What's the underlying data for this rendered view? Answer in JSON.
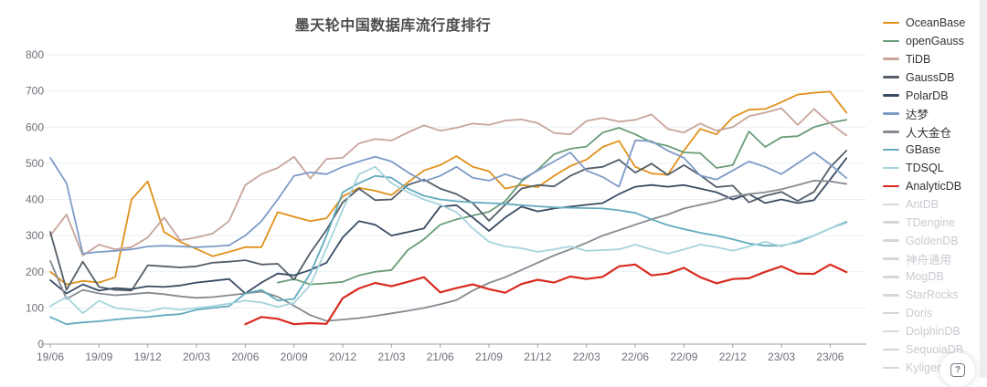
{
  "title": "墨天轮中国数据库流行度排行",
  "help_button": {
    "glyph": "?"
  },
  "colors": {
    "axis_line": "#9aa0a6",
    "grid_line": "#e9eff5",
    "axis_label": "#6e7079",
    "disabled_swatch": "#d4d7db"
  },
  "chart_data": {
    "type": "line",
    "title": "墨天轮中国数据库流行度排行",
    "xlabel": "",
    "ylabel": "",
    "ylim": [
      0,
      800
    ],
    "grid": true,
    "legend_position": "right",
    "y_ticks": [
      0,
      100,
      200,
      300,
      400,
      500,
      600,
      700,
      800
    ],
    "x": [
      "19/06",
      "19/07",
      "19/08",
      "19/09",
      "19/10",
      "19/11",
      "19/12",
      "20/01",
      "20/02",
      "20/03",
      "20/04",
      "20/05",
      "20/06",
      "20/07",
      "20/08",
      "20/09",
      "20/10",
      "20/11",
      "20/12",
      "21/01",
      "21/02",
      "21/03",
      "21/04",
      "21/05",
      "21/06",
      "21/07",
      "21/08",
      "21/09",
      "21/10",
      "21/11",
      "21/12",
      "22/01",
      "22/02",
      "22/03",
      "22/04",
      "22/05",
      "22/06",
      "22/07",
      "22/08",
      "22/09",
      "22/10",
      "22/11",
      "22/12",
      "23/01",
      "23/02",
      "23/03",
      "23/04",
      "23/05",
      "23/06",
      "23/07"
    ],
    "x_tick_labels": [
      "19/06",
      "19/09",
      "19/12",
      "20/03",
      "20/06",
      "20/09",
      "20/12",
      "21/03",
      "21/06",
      "21/09",
      "21/12",
      "22/03",
      "22/06",
      "22/09",
      "22/12",
      "23/03",
      "23/06"
    ],
    "series": [
      {
        "name": "OceanBase",
        "color": "#e0911a",
        "values": [
          200,
          165,
          175,
          170,
          185,
          400,
          450,
          310,
          283,
          263,
          243,
          255,
          268,
          268,
          365,
          352,
          340,
          348,
          408,
          432,
          424,
          412,
          447,
          480,
          495,
          520,
          490,
          478,
          430,
          440,
          434,
          465,
          492,
          510,
          545,
          562,
          490,
          472,
          468,
          535,
          595,
          580,
          627,
          648,
          650,
          669,
          690,
          695,
          698,
          640
        ]
      },
      {
        "name": "openGauss",
        "color": "#699d78",
        "values": [
          null,
          null,
          null,
          null,
          null,
          null,
          null,
          null,
          null,
          null,
          null,
          null,
          null,
          null,
          170,
          180,
          165,
          168,
          172,
          190,
          200,
          205,
          260,
          290,
          330,
          345,
          355,
          366,
          395,
          450,
          482,
          525,
          540,
          546,
          585,
          598,
          580,
          558,
          548,
          530,
          528,
          487,
          495,
          588,
          545,
          572,
          575,
          600,
          612,
          620
        ]
      },
      {
        "name": "TiDB",
        "color": "#c7a59b",
        "values": [
          300,
          358,
          245,
          275,
          262,
          268,
          295,
          350,
          287,
          295,
          306,
          340,
          440,
          470,
          487,
          518,
          458,
          512,
          515,
          555,
          567,
          563,
          585,
          605,
          590,
          598,
          610,
          606,
          618,
          621,
          611,
          584,
          580,
          617,
          625,
          615,
          620,
          635,
          595,
          585,
          610,
          590,
          600,
          630,
          640,
          652,
          606,
          650,
          610,
          577
        ]
      },
      {
        "name": "GaussDB",
        "color": "#535e68",
        "values": [
          310,
          150,
          228,
          158,
          150,
          148,
          218,
          215,
          212,
          215,
          225,
          228,
          232,
          220,
          222,
          178,
          252,
          316,
          392,
          430,
          398,
          400,
          440,
          455,
          430,
          415,
          390,
          341,
          385,
          430,
          440,
          436,
          465,
          485,
          490,
          510,
          474,
          499,
          468,
          495,
          467,
          434,
          438,
          392,
          410,
          421,
          396,
          421,
          489,
          535
        ]
      },
      {
        "name": "PolarDB",
        "color": "#3a4c63",
        "values": [
          177,
          140,
          165,
          148,
          155,
          152,
          160,
          158,
          162,
          170,
          175,
          180,
          140,
          170,
          195,
          190,
          205,
          225,
          295,
          340,
          330,
          300,
          310,
          320,
          380,
          384,
          350,
          313,
          350,
          380,
          367,
          375,
          380,
          385,
          390,
          415,
          435,
          440,
          435,
          440,
          430,
          420,
          400,
          415,
          390,
          400,
          390,
          398,
          455,
          514
        ]
      },
      {
        "name": "达梦",
        "color": "#7e9bc6",
        "values": [
          515,
          445,
          250,
          255,
          258,
          262,
          270,
          272,
          270,
          268,
          270,
          273,
          300,
          340,
          400,
          465,
          475,
          470,
          490,
          505,
          518,
          505,
          475,
          450,
          465,
          490,
          460,
          452,
          470,
          455,
          480,
          505,
          530,
          480,
          462,
          435,
          563,
          561,
          535,
          515,
          466,
          455,
          480,
          505,
          490,
          470,
          500,
          530,
          497,
          459
        ]
      },
      {
        "name": "人大金仓",
        "color": "#858a8f",
        "values": [
          230,
          125,
          150,
          140,
          135,
          138,
          142,
          138,
          132,
          128,
          130,
          135,
          140,
          145,
          131,
          106,
          80,
          64,
          68,
          72,
          78,
          85,
          92,
          100,
          110,
          122,
          148,
          169,
          185,
          205,
          225,
          245,
          262,
          280,
          300,
          315,
          330,
          345,
          358,
          375,
          385,
          395,
          408,
          415,
          420,
          428,
          440,
          452,
          450,
          443
        ]
      },
      {
        "name": "GBase",
        "color": "#63aabf",
        "values": [
          75,
          55,
          60,
          63,
          68,
          72,
          75,
          80,
          83,
          95,
          100,
          105,
          140,
          150,
          120,
          125,
          195,
          300,
          420,
          445,
          465,
          460,
          430,
          410,
          400,
          395,
          392,
          390,
          388,
          384,
          381,
          378,
          377,
          376,
          375,
          370,
          363,
          345,
          329,
          318,
          308,
          300,
          290,
          278,
          272,
          272,
          282,
          300,
          320,
          338
        ]
      },
      {
        "name": "TDSQL",
        "color": "#a6d4dc",
        "values": [
          105,
          130,
          85,
          120,
          100,
          95,
          90,
          100,
          95,
          100,
          105,
          112,
          120,
          115,
          103,
          114,
          163,
          265,
          371,
          470,
          490,
          445,
          420,
          400,
          385,
          365,
          320,
          283,
          270,
          265,
          255,
          262,
          270,
          258,
          260,
          262,
          275,
          262,
          250,
          262,
          275,
          268,
          258,
          270,
          283,
          270,
          285,
          300,
          320,
          335
        ]
      },
      {
        "name": "AnalyticDB",
        "color": "#d92b20",
        "values": [
          null,
          null,
          null,
          null,
          null,
          null,
          null,
          null,
          null,
          null,
          null,
          null,
          55,
          75,
          70,
          55,
          58,
          56,
          127,
          154,
          169,
          160,
          172,
          185,
          143,
          155,
          165,
          152,
          142,
          166,
          178,
          170,
          187,
          180,
          186,
          215,
          220,
          190,
          195,
          211,
          185,
          168,
          180,
          182,
          200,
          215,
          195,
          194,
          220,
          199
        ]
      }
    ],
    "disabled_series": [
      "AntDB",
      "TDengine",
      "GoldenDB",
      "神舟通用",
      "MogDB",
      "StarRocks",
      "Doris",
      "DolphinDB",
      "SequoiaDB",
      "Kyligence"
    ]
  }
}
